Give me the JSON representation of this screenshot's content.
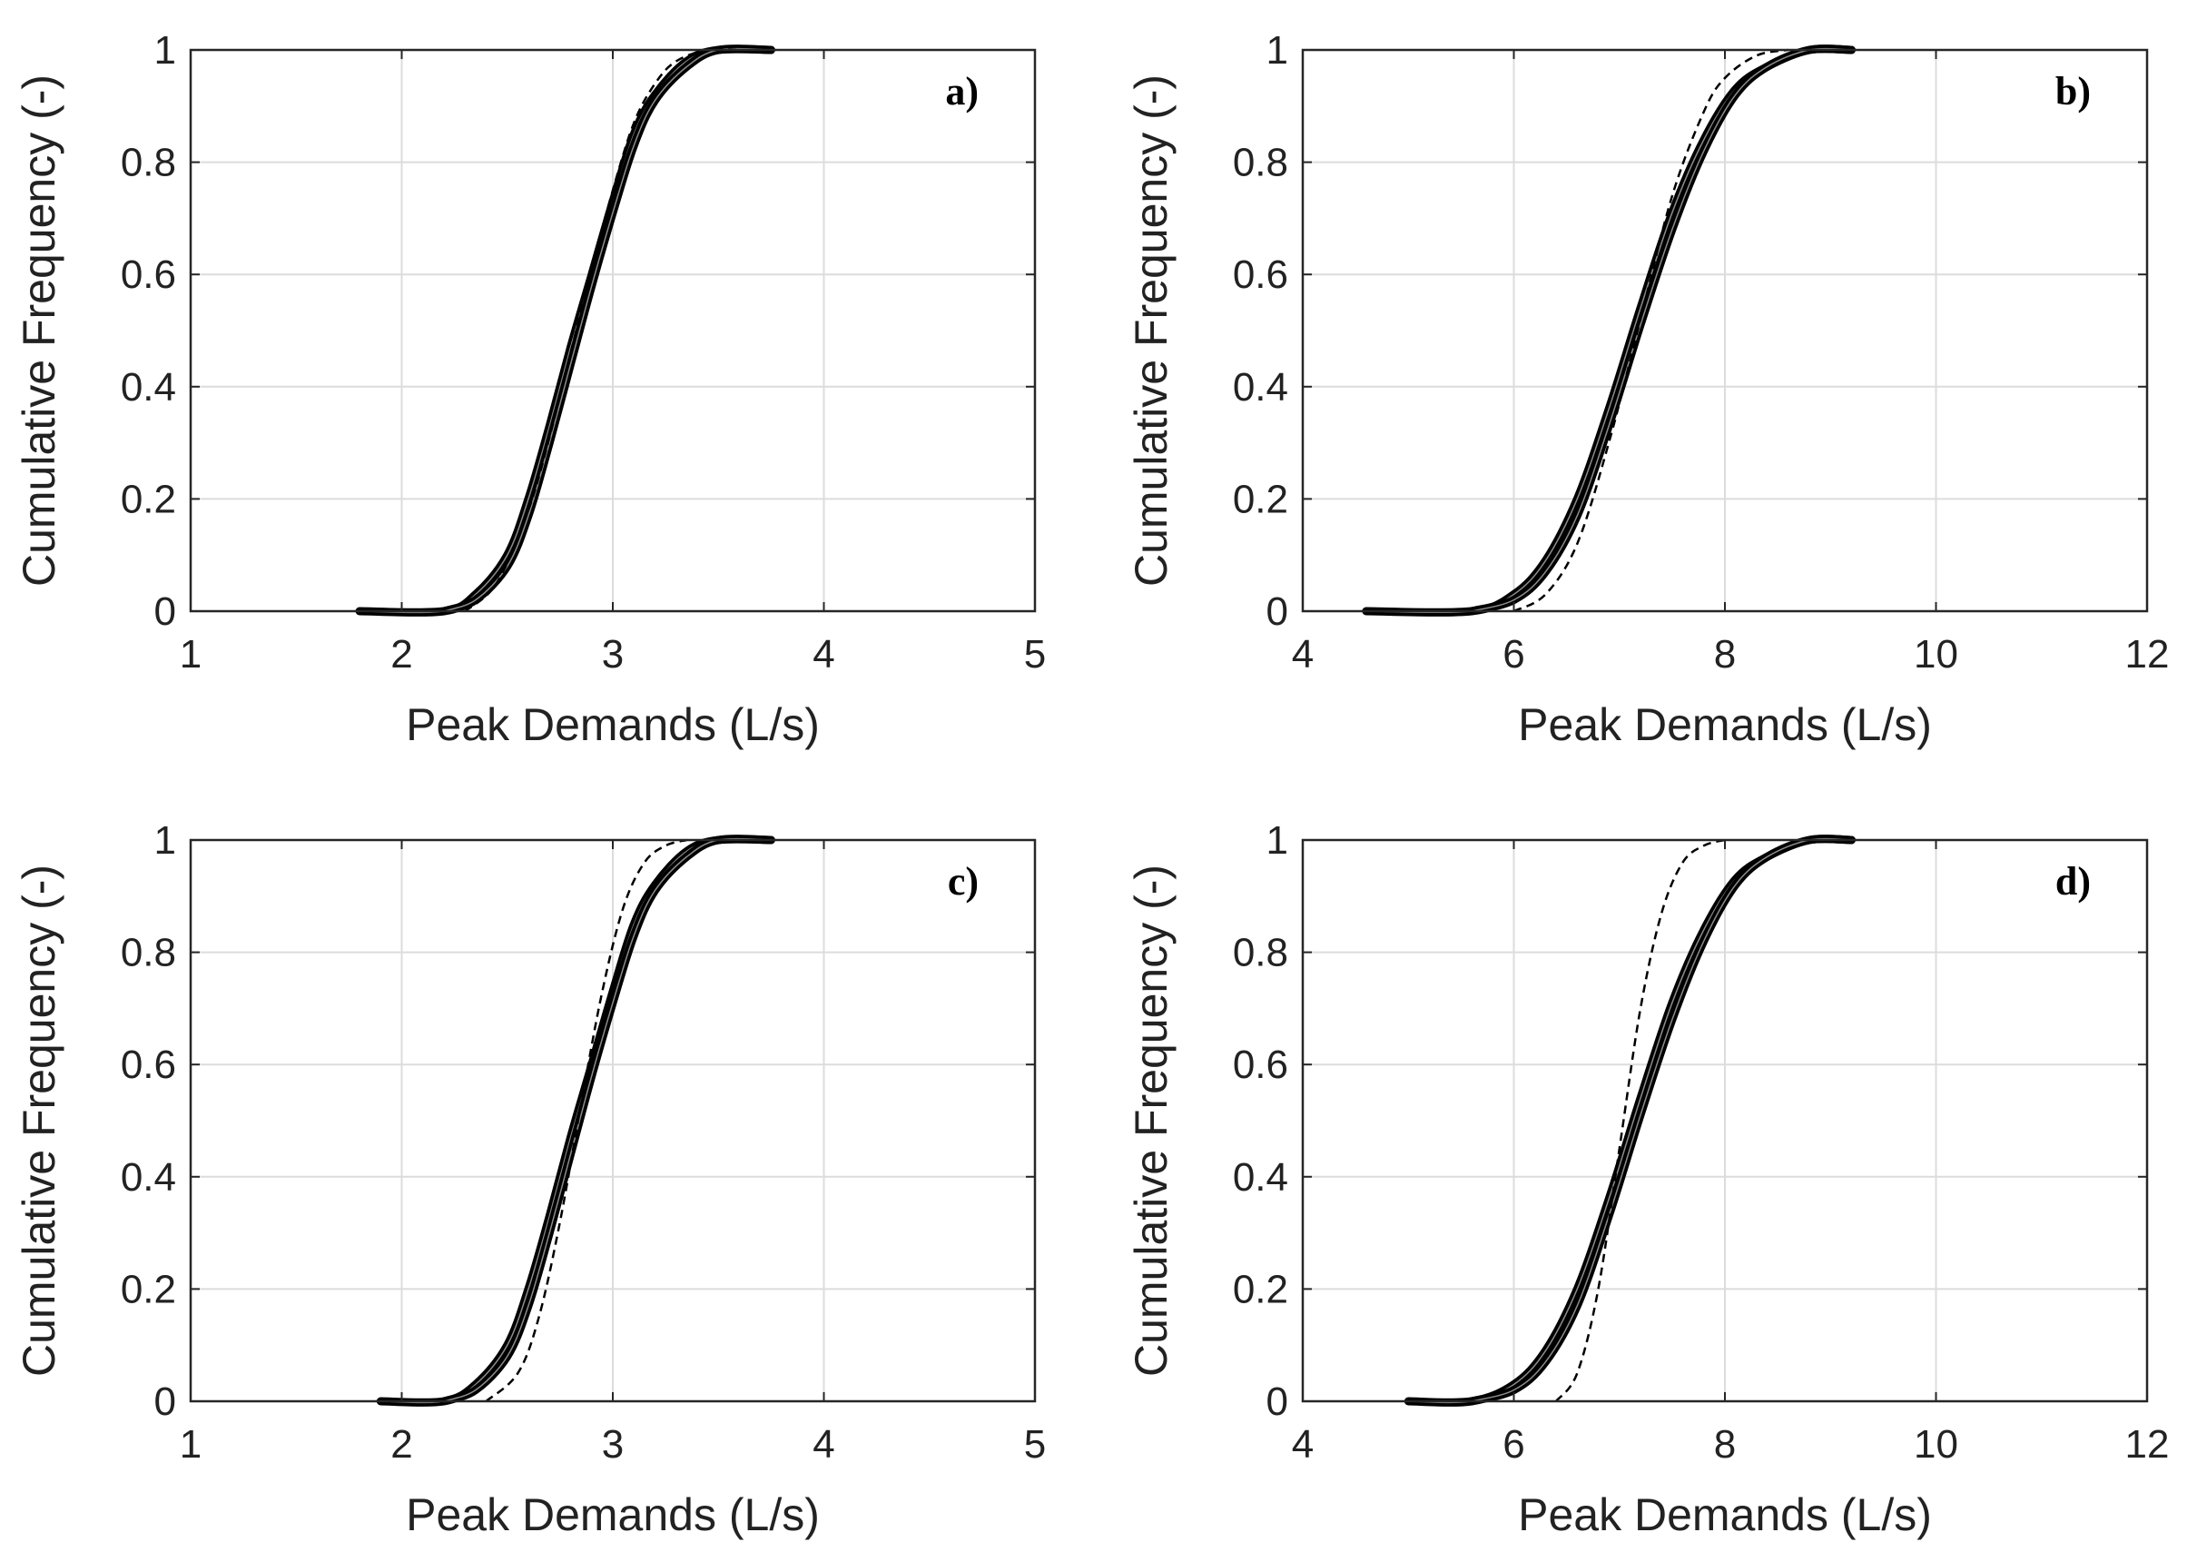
{
  "chart_data": [
    {
      "type": "line",
      "panel_label": "a)",
      "xlabel": "Peak Demands (L/s)",
      "ylabel": "Cumulative Frequency (-)",
      "xlim": [
        1,
        5
      ],
      "ylim": [
        0,
        1
      ],
      "xticks": [
        "1",
        "2",
        "3",
        "4",
        "5"
      ],
      "yticks": [
        "0",
        "0.2",
        "0.4",
        "0.6",
        "0.8",
        "1"
      ],
      "grid": true,
      "series": [
        {
          "name": "solid-1",
          "style": "solid",
          "x": [
            1.8,
            2.2,
            2.35,
            2.5,
            2.6,
            2.7,
            2.8,
            2.9,
            3.0,
            3.1,
            3.2,
            3.35,
            3.5,
            3.75
          ],
          "y": [
            0,
            0.0,
            0.03,
            0.1,
            0.2,
            0.33,
            0.47,
            0.6,
            0.73,
            0.85,
            0.92,
            0.98,
            1.0,
            1.0
          ]
        },
        {
          "name": "solid-2",
          "style": "solid",
          "x": [
            2.2,
            2.35,
            2.5,
            2.6,
            2.7,
            2.8,
            2.9,
            3.0,
            3.1,
            3.2,
            3.35,
            3.5,
            3.75
          ],
          "y": [
            0,
            0.02,
            0.08,
            0.17,
            0.3,
            0.44,
            0.58,
            0.71,
            0.83,
            0.91,
            0.97,
            1.0,
            1.0
          ]
        },
        {
          "name": "dashed",
          "style": "dashed",
          "x": [
            2.3,
            2.45,
            2.6,
            2.7,
            2.8,
            2.9,
            3.0,
            3.1,
            3.2,
            3.3,
            3.45,
            3.6
          ],
          "y": [
            0,
            0.05,
            0.18,
            0.31,
            0.46,
            0.61,
            0.75,
            0.87,
            0.94,
            0.98,
            1.0,
            1.0
          ]
        }
      ]
    },
    {
      "type": "line",
      "panel_label": "b)",
      "xlabel": "Peak Demands (L/s)",
      "ylabel": "Cumulative Frequency (-)",
      "xlim": [
        4,
        12
      ],
      "ylim": [
        0,
        1
      ],
      "xticks": [
        "4",
        "6",
        "8",
        "10",
        "12"
      ],
      "yticks": [
        "0",
        "0.2",
        "0.4",
        "0.6",
        "0.8",
        "1"
      ],
      "grid": true,
      "series": [
        {
          "name": "solid-1",
          "style": "solid",
          "x": [
            4.6,
            5.6,
            6.0,
            6.3,
            6.6,
            6.9,
            7.2,
            7.5,
            7.8,
            8.1,
            8.4,
            8.8,
            9.2
          ],
          "y": [
            0,
            0,
            0.03,
            0.09,
            0.2,
            0.36,
            0.54,
            0.71,
            0.84,
            0.93,
            0.97,
            1.0,
            1.0
          ]
        },
        {
          "name": "solid-2",
          "style": "solid",
          "x": [
            5.6,
            6.0,
            6.3,
            6.6,
            6.9,
            7.2,
            7.5,
            7.8,
            8.1,
            8.4,
            8.8,
            9.2
          ],
          "y": [
            0,
            0.02,
            0.07,
            0.17,
            0.33,
            0.51,
            0.68,
            0.82,
            0.92,
            0.97,
            1.0,
            1.0
          ]
        },
        {
          "name": "dashed",
          "style": "dashed",
          "x": [
            6.0,
            6.3,
            6.6,
            6.9,
            7.2,
            7.5,
            7.8,
            8.0,
            8.3,
            8.6
          ],
          "y": [
            0,
            0.03,
            0.12,
            0.3,
            0.52,
            0.74,
            0.89,
            0.95,
            0.99,
            1.0
          ]
        }
      ]
    },
    {
      "type": "line",
      "panel_label": "c)",
      "xlabel": "Peak Demands (L/s)",
      "ylabel": "Cumulative Frequency (-)",
      "xlim": [
        1,
        5
      ],
      "ylim": [
        0,
        1
      ],
      "xticks": [
        "1",
        "2",
        "3",
        "4",
        "5"
      ],
      "yticks": [
        "0",
        "0.2",
        "0.4",
        "0.6",
        "0.8",
        "1"
      ],
      "grid": true,
      "series": [
        {
          "name": "solid-1",
          "style": "solid",
          "x": [
            1.9,
            2.2,
            2.35,
            2.5,
            2.6,
            2.7,
            2.8,
            2.9,
            3.0,
            3.1,
            3.2,
            3.35,
            3.5,
            3.75
          ],
          "y": [
            0,
            0.0,
            0.03,
            0.1,
            0.2,
            0.33,
            0.47,
            0.6,
            0.73,
            0.85,
            0.92,
            0.98,
            1.0,
            1.0
          ]
        },
        {
          "name": "solid-2",
          "style": "solid",
          "x": [
            2.2,
            2.35,
            2.5,
            2.6,
            2.7,
            2.8,
            2.9,
            3.0,
            3.1,
            3.2,
            3.35,
            3.5,
            3.75
          ],
          "y": [
            0,
            0.02,
            0.08,
            0.17,
            0.3,
            0.44,
            0.58,
            0.71,
            0.83,
            0.91,
            0.97,
            1.0,
            1.0
          ]
        },
        {
          "name": "dashed",
          "style": "dashed",
          "x": [
            2.4,
            2.55,
            2.65,
            2.75,
            2.85,
            2.95,
            3.05,
            3.15,
            3.25,
            3.35
          ],
          "y": [
            0,
            0.05,
            0.15,
            0.32,
            0.53,
            0.73,
            0.88,
            0.96,
            0.99,
            1.0
          ]
        }
      ]
    },
    {
      "type": "line",
      "panel_label": "d)",
      "xlabel": "Peak Demands (L/s)",
      "ylabel": "Cumulative Frequency (-)",
      "xlim": [
        4,
        12
      ],
      "ylim": [
        0,
        1
      ],
      "xticks": [
        "4",
        "6",
        "8",
        "10",
        "12"
      ],
      "yticks": [
        "0",
        "0.2",
        "0.4",
        "0.6",
        "0.8",
        "1"
      ],
      "grid": true,
      "series": [
        {
          "name": "solid-1",
          "style": "solid",
          "x": [
            5.0,
            5.6,
            6.0,
            6.3,
            6.6,
            6.9,
            7.2,
            7.5,
            7.8,
            8.1,
            8.4,
            8.8,
            9.2
          ],
          "y": [
            0,
            0,
            0.03,
            0.09,
            0.2,
            0.36,
            0.54,
            0.71,
            0.84,
            0.93,
            0.97,
            1.0,
            1.0
          ]
        },
        {
          "name": "solid-2",
          "style": "solid",
          "x": [
            5.6,
            6.0,
            6.3,
            6.6,
            6.9,
            7.2,
            7.5,
            7.8,
            8.1,
            8.4,
            8.8,
            9.2
          ],
          "y": [
            0,
            0.02,
            0.07,
            0.17,
            0.33,
            0.51,
            0.68,
            0.82,
            0.92,
            0.97,
            1.0,
            1.0
          ]
        },
        {
          "name": "dashed",
          "style": "dashed",
          "x": [
            6.4,
            6.6,
            6.8,
            7.0,
            7.2,
            7.4,
            7.6,
            7.8,
            8.0
          ],
          "y": [
            0,
            0.05,
            0.2,
            0.45,
            0.7,
            0.87,
            0.96,
            0.99,
            1.0
          ]
        }
      ]
    }
  ]
}
